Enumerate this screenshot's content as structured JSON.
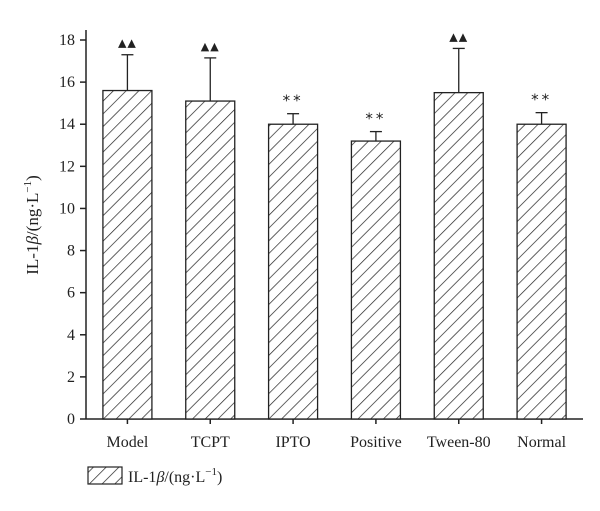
{
  "chart_data": {
    "type": "bar",
    "categories": [
      "Model",
      "TCPT",
      "IPTO",
      "Positive",
      "Tween-80",
      "Normal"
    ],
    "series": [
      {
        "name": "IL-1β/(ng·L⁻¹)",
        "values": [
          15.6,
          15.1,
          14.0,
          13.2,
          15.5,
          14.0
        ],
        "errors": [
          1.7,
          2.05,
          0.5,
          0.45,
          2.1,
          0.55
        ]
      }
    ],
    "annotations": [
      "▲▲",
      "▲▲",
      "**",
      "**",
      "▲▲",
      "**"
    ],
    "ylabel_main": "IL-1",
    "ylabel_beta": "β",
    "ylabel_unit": "/(ng·L",
    "ylabel_exp": "−1",
    "ylabel_close": ")",
    "ylim": [
      0,
      18
    ],
    "yticks": [
      "0",
      "2",
      "4",
      "6",
      "8",
      "10",
      "12",
      "14",
      "16",
      "18"
    ],
    "legend_position": "bottom-left",
    "legend_label": "IL-1β/(ng·L−1)",
    "legend_main": "IL-1",
    "legend_beta": "β",
    "legend_unit": "/(ng·L",
    "legend_exp": "−1",
    "legend_close": ")",
    "bar_pattern": "diagonal-hatch",
    "bar_color": "#ffffff",
    "stroke_color": "#222222",
    "grid": false
  }
}
